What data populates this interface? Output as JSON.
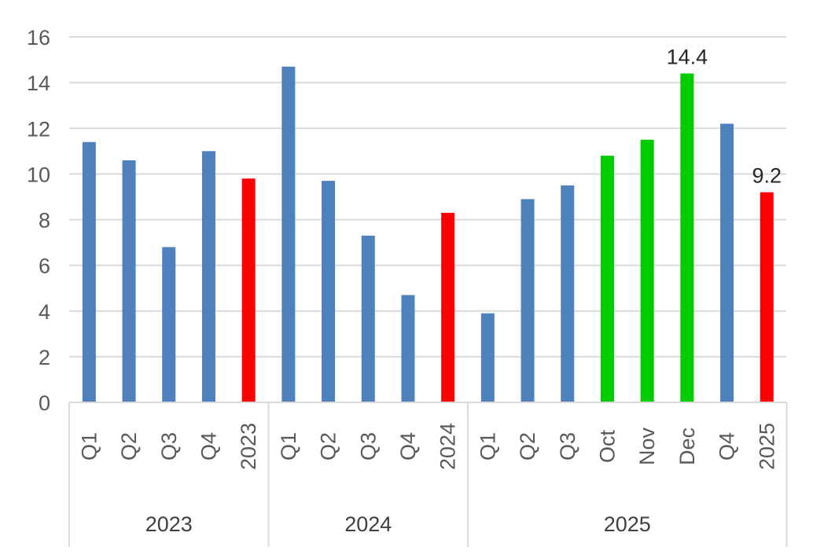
{
  "chart_data": {
    "type": "bar",
    "ylim": [
      0,
      16
    ],
    "y_ticks": [
      0,
      2,
      4,
      6,
      8,
      10,
      12,
      14,
      16
    ],
    "grid": true,
    "legend": "none",
    "colors": {
      "quarter": "#4f81bd",
      "month": "#00cc00",
      "annual": "#ff0000"
    },
    "groups": [
      {
        "label": "2023",
        "bars": [
          {
            "label": "Q1",
            "value": 11.4,
            "kind": "quarter"
          },
          {
            "label": "Q2",
            "value": 10.6,
            "kind": "quarter"
          },
          {
            "label": "Q3",
            "value": 6.8,
            "kind": "quarter"
          },
          {
            "label": "Q4",
            "value": 11.0,
            "kind": "quarter"
          },
          {
            "label": "2023",
            "value": 9.8,
            "kind": "annual"
          }
        ]
      },
      {
        "label": "2024",
        "bars": [
          {
            "label": "Q1",
            "value": 14.7,
            "kind": "quarter"
          },
          {
            "label": "Q2",
            "value": 9.7,
            "kind": "quarter"
          },
          {
            "label": "Q3",
            "value": 7.3,
            "kind": "quarter"
          },
          {
            "label": "Q4",
            "value": 4.7,
            "kind": "quarter"
          },
          {
            "label": "2024",
            "value": 8.3,
            "kind": "annual"
          }
        ]
      },
      {
        "label": "2025",
        "bars": [
          {
            "label": "Q1",
            "value": 3.9,
            "kind": "quarter"
          },
          {
            "label": "Q2",
            "value": 8.9,
            "kind": "quarter"
          },
          {
            "label": "Q3",
            "value": 9.5,
            "kind": "quarter"
          },
          {
            "label": "Oct",
            "value": 10.8,
            "kind": "month"
          },
          {
            "label": "Nov",
            "value": 11.5,
            "kind": "month"
          },
          {
            "label": "Dec",
            "value": 14.4,
            "kind": "month",
            "data_label": "14.4"
          },
          {
            "label": "Q4",
            "value": 12.2,
            "kind": "quarter"
          },
          {
            "label": "2025",
            "value": 9.2,
            "kind": "annual",
            "data_label": "9.2"
          }
        ]
      }
    ]
  }
}
